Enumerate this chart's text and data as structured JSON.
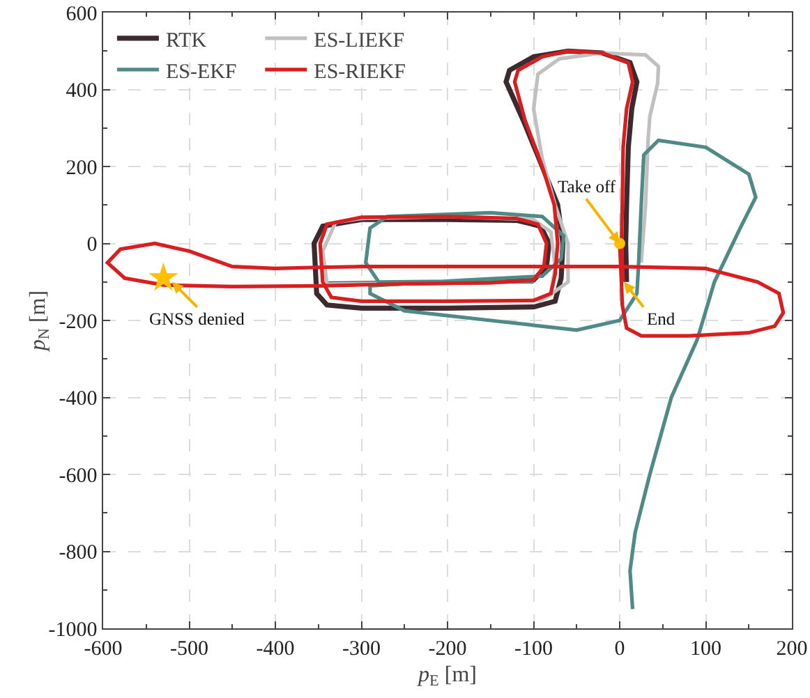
{
  "chart_data": {
    "type": "line",
    "xlabel": "p$_{E}$ [m]",
    "ylabel": "p$_{N}$ [m]",
    "xlim": [
      -600,
      200
    ],
    "xticks": [
      -600,
      -500,
      -400,
      -300,
      -200,
      -100,
      0,
      100,
      200
    ],
    "ylim": [
      -1000,
      600
    ],
    "yticks": [
      -1000,
      -800,
      -600,
      -400,
      -200,
      0,
      200,
      400,
      600
    ],
    "grid": true,
    "legend": "top left",
    "line_style": "solid",
    "marker": "none",
    "series": [
      {
        "name": "RTK",
        "color": "#3d2a2e",
        "x": [
          -340,
          -250,
          -150,
          -100,
          -85,
          -82,
          -92,
          -120,
          -200,
          -300,
          -345,
          -355,
          -352,
          -340,
          -300,
          -200,
          -100,
          -75,
          -68,
          -66,
          -72,
          -90,
          -112,
          -132,
          -128,
          -100,
          -60,
          -20,
          12,
          20,
          14,
          10,
          8,
          7,
          8
        ],
        "values": [
          -105,
          -103,
          -100,
          -95,
          -60,
          0,
          45,
          60,
          62,
          62,
          45,
          0,
          -130,
          -160,
          -168,
          -168,
          -165,
          -150,
          -90,
          0,
          100,
          200,
          320,
          420,
          450,
          485,
          500,
          495,
          470,
          420,
          350,
          250,
          100,
          0,
          -100
        ]
      },
      {
        "name": "ES-LIEKF",
        "color": "#c0c0c0",
        "x": [
          -100,
          -200,
          -340,
          -345,
          -330,
          -300,
          -200,
          -100,
          -80,
          -75,
          -80,
          -95,
          -85,
          -60,
          -60,
          -75,
          -90,
          -100,
          -95,
          -70,
          -20,
          30,
          45,
          44,
          35,
          33,
          30,
          25
        ],
        "values": [
          -100,
          -102,
          -105,
          -20,
          55,
          65,
          70,
          62,
          30,
          -60,
          -130,
          -150,
          -140,
          -100,
          0,
          100,
          220,
          350,
          440,
          480,
          495,
          490,
          460,
          415,
          330,
          270,
          100,
          -50
        ]
      },
      {
        "name": "ES-EKF",
        "color": "#4f8a87",
        "x": [
          -100,
          -180,
          -280,
          -295,
          -290,
          -270,
          -150,
          -90,
          -65,
          -68,
          -90,
          -180,
          -290,
          -290,
          -250,
          -150,
          -50,
          0,
          20,
          22,
          25,
          28,
          45,
          100,
          150,
          158,
          140,
          110,
          90,
          60,
          35,
          18,
          12,
          15
        ],
        "values": [
          -100,
          -98,
          -100,
          -50,
          40,
          70,
          80,
          70,
          20,
          -40,
          -85,
          -95,
          -110,
          -130,
          -175,
          -200,
          -225,
          -200,
          -130,
          -50,
          100,
          230,
          268,
          250,
          180,
          120,
          40,
          -100,
          -250,
          -400,
          -600,
          -750,
          -850,
          -950
        ]
      },
      {
        "name": "ES-RIEKF",
        "color": "#d81e1e",
        "x": [
          0,
          2,
          3,
          8,
          25,
          80,
          150,
          180,
          190,
          185,
          160,
          100,
          0,
          -100,
          -200,
          -300,
          -350,
          -400,
          -450,
          -500,
          -540,
          -580,
          -595,
          -575,
          -530,
          -450,
          -350,
          -250,
          -150,
          -100,
          -88,
          -85,
          -95,
          -120,
          -200,
          -300,
          -340,
          -348,
          -345,
          -335,
          -300,
          -200,
          -100,
          -80,
          -75,
          -72,
          -76,
          -90,
          -110,
          -122,
          -118,
          -90,
          -60,
          -20,
          10,
          15,
          8,
          4,
          3,
          2,
          4
        ],
        "values": [
          0,
          -100,
          -160,
          -220,
          -240,
          -240,
          -232,
          -215,
          -180,
          -130,
          -100,
          -65,
          -60,
          -60,
          -60,
          -60,
          -62,
          -65,
          -60,
          -20,
          0,
          -15,
          -50,
          -90,
          -108,
          -112,
          -110,
          -105,
          -102,
          -95,
          -60,
          0,
          50,
          65,
          70,
          68,
          50,
          0,
          -100,
          -140,
          -150,
          -150,
          -148,
          -130,
          -80,
          0,
          100,
          200,
          320,
          420,
          450,
          485,
          500,
          495,
          470,
          420,
          350,
          250,
          100,
          0,
          -100
        ]
      },
      {
        "type": "scatter",
        "marker": "star",
        "color": "#ffc000",
        "x": [
          -530
        ],
        "values": [
          -90
        ]
      },
      {
        "type": "scatter",
        "marker": "circle",
        "color": "#ffc000",
        "x": [
          0
        ],
        "values": [
          0
        ]
      }
    ],
    "annotations": [
      {
        "text": "GNSS denied",
        "x": -520,
        "y": -100
      },
      {
        "text": "Take off",
        "x": 0,
        "y": 0
      },
      {
        "text": "End",
        "x": 5,
        "y": -100
      }
    ]
  }
}
